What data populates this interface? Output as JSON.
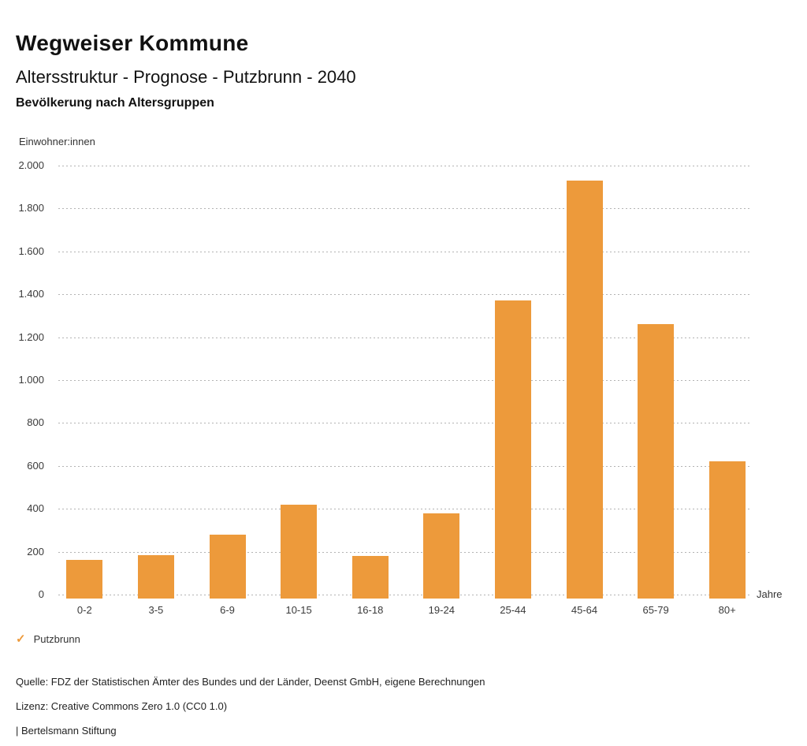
{
  "page": {
    "title": "Wegweiser Kommune",
    "subtitle": "Altersstruktur - Prognose - Putzbrunn - 2040",
    "chart_heading": "Bevölkerung nach Altersgruppen"
  },
  "chart_data": {
    "type": "bar",
    "title": "Bevölkerung nach Altersgruppen",
    "categories": [
      "0-2",
      "3-5",
      "6-9",
      "10-15",
      "16-18",
      "19-24",
      "25-44",
      "45-64",
      "65-79",
      "80+"
    ],
    "series": [
      {
        "name": "Putzbrunn",
        "values": [
          160,
          185,
          280,
          420,
          180,
          380,
          1370,
          1930,
          1260,
          620
        ]
      }
    ],
    "xlabel": "Jahre",
    "ylabel": "Einwohner:innen",
    "ylim": [
      0,
      2000
    ],
    "ytick_step": 200,
    "ytick_labels": [
      "0",
      "200",
      "400",
      "600",
      "800",
      "1.000",
      "1.200",
      "1.400",
      "1.600",
      "1.800",
      "2.000"
    ],
    "grid": "horizontal-dotted",
    "legend_position": "bottom-left",
    "bar_color": "#ED9A3B"
  },
  "legend": {
    "marker": "✓",
    "label": "Putzbrunn"
  },
  "footer": {
    "source": "Quelle: FDZ der Statistischen Ämter des Bundes und der Länder, Deenst GmbH, eigene Berechnungen",
    "license": "Lizenz: Creative Commons Zero 1.0 (CC0 1.0)",
    "attribution": "| Bertelsmann Stiftung"
  },
  "colors": {
    "accent_orange": "#ED9A3B",
    "gridline": "#b3b3b3",
    "text_dark": "#111111",
    "text_gray": "#3a3a3a",
    "background": "#ffffff"
  }
}
